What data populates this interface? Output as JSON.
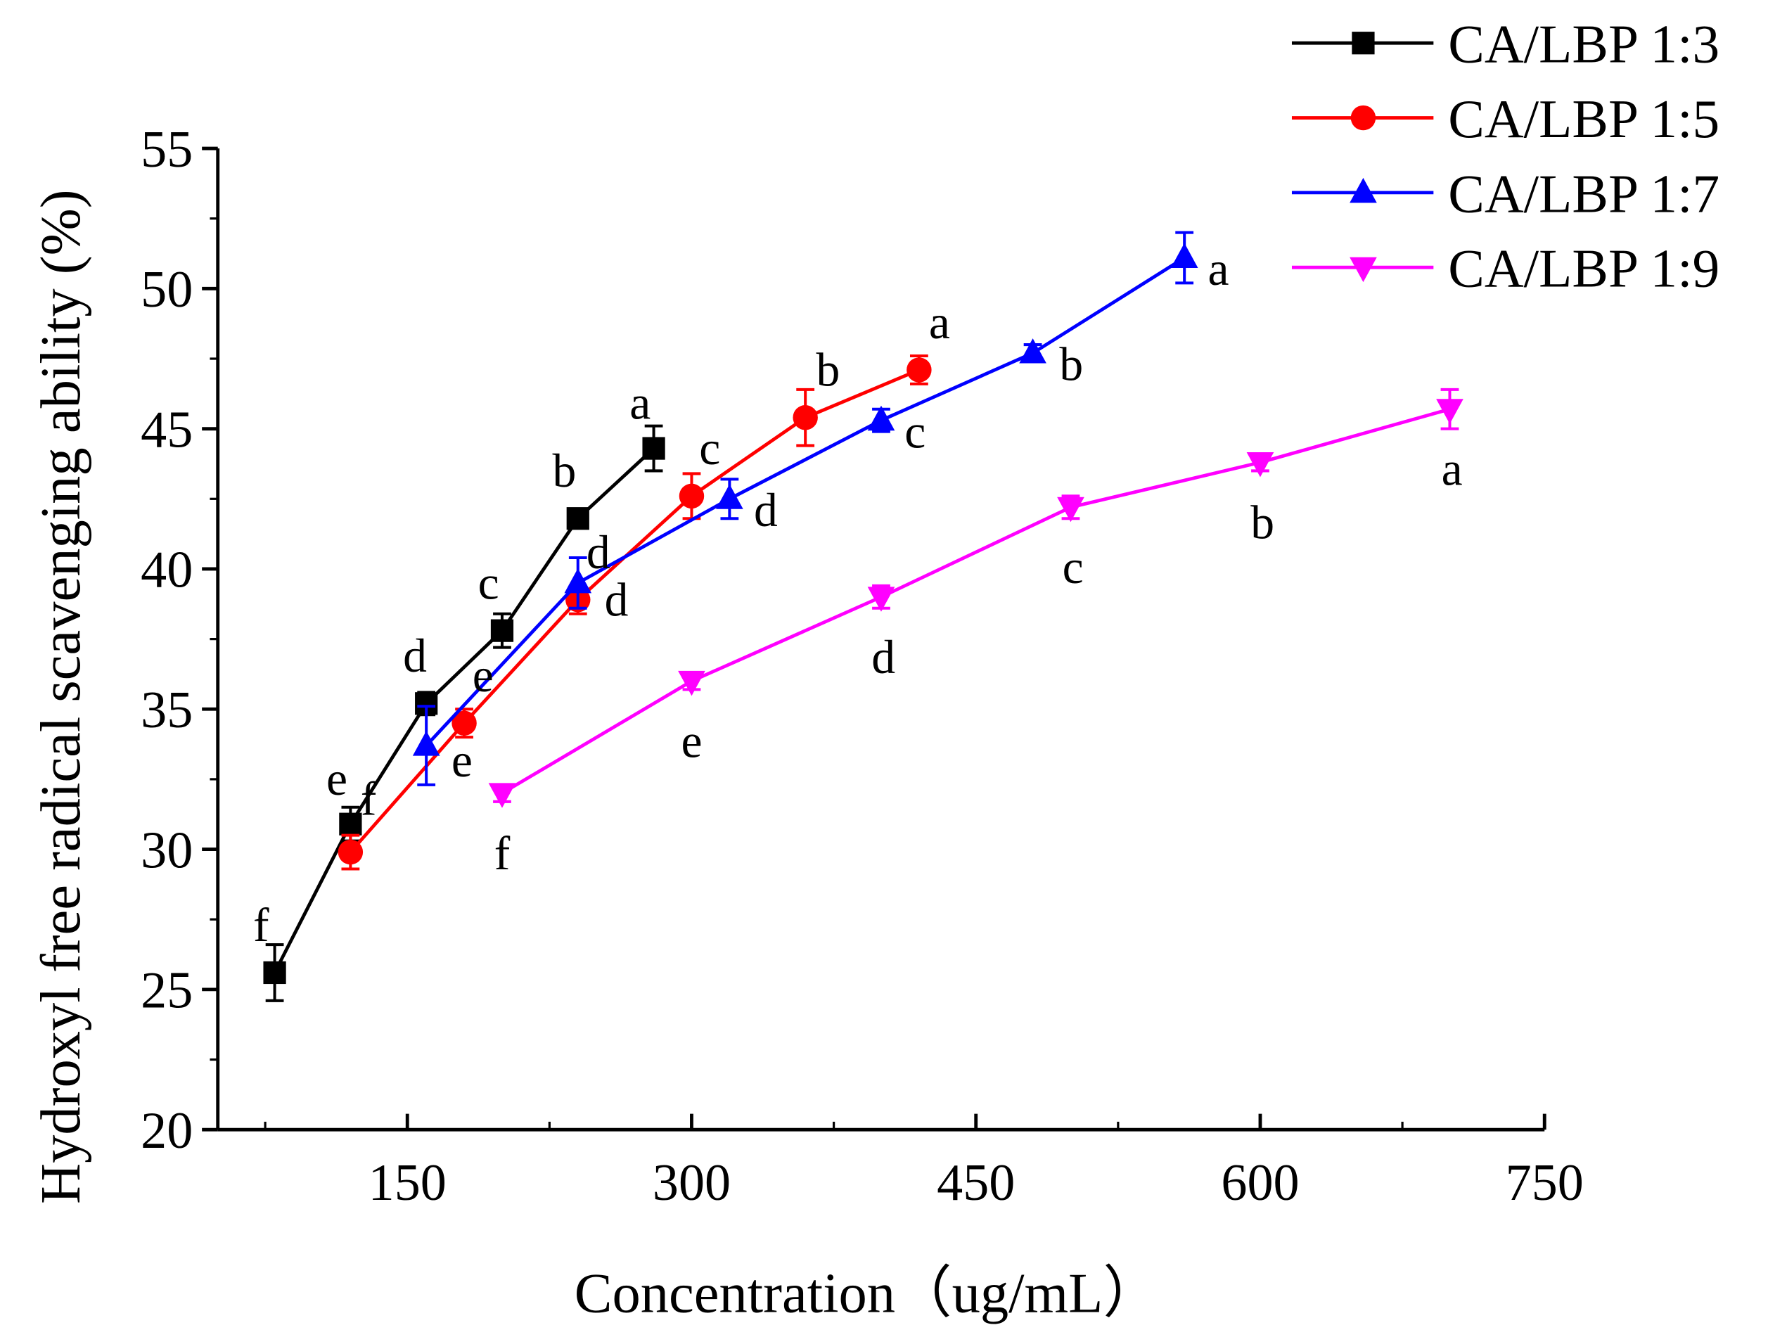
{
  "chart_data": {
    "type": "line",
    "title": "",
    "xlabel": "Concentration（ug/mL）",
    "ylabel": "Hydroxyl free radical scavenging ability (%)",
    "xlim": [
      50,
      750
    ],
    "ylim": [
      20,
      55
    ],
    "xticks": [
      150,
      300,
      450,
      600,
      750
    ],
    "yticks": [
      20,
      25,
      30,
      35,
      40,
      45,
      50,
      55
    ],
    "grid": false,
    "legend_position": "top-right",
    "series": [
      {
        "name": "CA/LBP 1:3",
        "color": "#000000",
        "marker": "square",
        "x": [
          80,
          120,
          160,
          200,
          240,
          280
        ],
        "y": [
          25.6,
          30.9,
          35.2,
          37.8,
          41.8,
          44.3
        ],
        "err": [
          1.0,
          0.6,
          0.4,
          0.6,
          0.3,
          0.8
        ],
        "letters": [
          "f",
          "e",
          "d",
          "c",
          "b",
          "a"
        ]
      },
      {
        "name": "CA/LBP 1:5",
        "color": "#ff0000",
        "marker": "circle",
        "x": [
          120,
          180,
          240,
          300,
          360,
          420
        ],
        "y": [
          29.9,
          34.5,
          38.9,
          42.6,
          45.4,
          47.1
        ],
        "err": [
          0.6,
          0.5,
          0.5,
          0.8,
          1.0,
          0.5
        ],
        "letters": [
          "f",
          "e",
          "d",
          "c",
          "b",
          "a"
        ]
      },
      {
        "name": "CA/LBP 1:7",
        "color": "#0000ff",
        "marker": "triangle-up",
        "x": [
          160,
          240,
          320,
          400,
          480,
          560
        ],
        "y": [
          33.7,
          39.5,
          42.5,
          45.3,
          47.7,
          51.1
        ],
        "err": [
          1.4,
          0.9,
          0.7,
          0.4,
          0.3,
          0.9
        ],
        "letters": [
          "e",
          "d",
          "d",
          "c",
          "b",
          "a"
        ]
      },
      {
        "name": "CA/LBP 1:9",
        "color": "#ff00ff",
        "marker": "triangle-down",
        "x": [
          200,
          300,
          400,
          500,
          600,
          700
        ],
        "y": [
          32.0,
          36.0,
          39.0,
          42.2,
          43.8,
          45.7
        ],
        "err": [
          0.3,
          0.3,
          0.4,
          0.4,
          0.3,
          0.7
        ],
        "letters": [
          "f",
          "e",
          "d",
          "c",
          "b",
          "a"
        ]
      }
    ]
  }
}
